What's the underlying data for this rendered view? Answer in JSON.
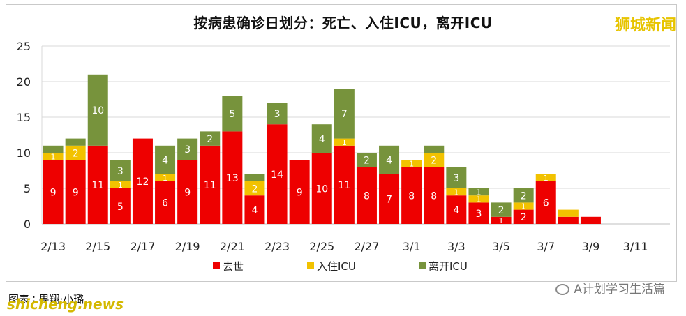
{
  "title": "按病患确诊日划分：死亡、入住ICU，离开ICU",
  "watermark_top": "狮城新闻",
  "footer": {
    "credit": "图表 ∶ 畀翔·小璐",
    "site": "shicheng.news",
    "account": "A计划学习生活篇"
  },
  "colors": {
    "died": "#ee0000",
    "icu_in": "#f2c200",
    "icu_out": "#77933c"
  },
  "chart_data": {
    "type": "bar",
    "stacked": true,
    "title": "按病患确诊日划分：死亡、入住ICU，离开ICU",
    "categories": [
      "2/13",
      "2/14",
      "2/15",
      "2/16",
      "2/17",
      "2/18",
      "2/19",
      "2/20",
      "2/21",
      "2/22",
      "2/23",
      "2/24",
      "2/25",
      "2/26",
      "2/27",
      "2/28",
      "3/1",
      "3/2",
      "3/3",
      "3/4",
      "3/5",
      "3/6",
      "3/7",
      "3/8",
      "3/9",
      "3/10",
      "3/11",
      "3/12"
    ],
    "tick_labels": [
      "2/13",
      "2/15",
      "2/17",
      "2/19",
      "2/21",
      "2/23",
      "2/25",
      "2/27",
      "3/1",
      "3/3",
      "3/5",
      "3/7",
      "3/9",
      "3/11"
    ],
    "ylim": [
      0,
      25
    ],
    "yticks": [
      0,
      5,
      10,
      15,
      20,
      25
    ],
    "grid": true,
    "legend_position": "bottom",
    "series": [
      {
        "name": "去世",
        "values": [
          9,
          9,
          11,
          5,
          12,
          6,
          9,
          11,
          13,
          4,
          14,
          9,
          10,
          11,
          8,
          7,
          8,
          8,
          4,
          3,
          1,
          2,
          6,
          1,
          1,
          0,
          0,
          0
        ]
      },
      {
        "name": "入住ICU",
        "values": [
          1,
          2,
          0,
          1,
          0,
          1,
          0,
          0,
          0,
          2,
          0,
          0,
          0,
          1,
          0,
          0,
          1,
          2,
          1,
          1,
          0,
          1,
          1,
          1,
          0,
          0,
          0,
          0
        ]
      },
      {
        "name": "离开ICU",
        "values": [
          1,
          1,
          10,
          3,
          0,
          4,
          3,
          2,
          5,
          1,
          3,
          0,
          4,
          7,
          2,
          4,
          0,
          1,
          3,
          1,
          2,
          2,
          0,
          0,
          0,
          0,
          0,
          0
        ]
      }
    ],
    "data_labels": [
      [
        "9",
        "9",
        "11",
        "5",
        "12",
        "6",
        "9",
        "11",
        "13",
        "4",
        "14",
        "9",
        "10",
        "11",
        "8",
        "7",
        "8",
        "8",
        "4",
        "3",
        "1",
        "2",
        "6",
        "",
        "",
        "",
        "",
        ""
      ],
      [
        "1",
        "2",
        "",
        "1",
        "",
        "1",
        "",
        "",
        "",
        "2",
        "",
        "",
        "",
        "1",
        "",
        "",
        "1",
        "2",
        "1",
        "1",
        "",
        "1",
        "1",
        "",
        "",
        "",
        "",
        ""
      ],
      [
        "",
        "",
        "10",
        "3",
        "",
        "4",
        "3",
        "2",
        "5",
        "",
        "3",
        "",
        "4",
        "7",
        "2",
        "4",
        "",
        "",
        "3",
        "1",
        "2",
        "2",
        "",
        "",
        "",
        "",
        "",
        ""
      ]
    ]
  }
}
